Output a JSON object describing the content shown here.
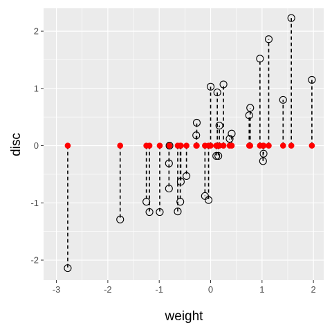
{
  "chart_data": {
    "type": "scatter",
    "xlabel": "weight",
    "ylabel": "disc",
    "xlim": [
      -3.25,
      2.2
    ],
    "ylim": [
      -2.35,
      2.4
    ],
    "x_ticks": [
      -3,
      -2,
      -1,
      0,
      1,
      2
    ],
    "x_tick_labels": [
      "-3",
      "-2",
      "-1",
      "0",
      "1",
      "2"
    ],
    "y_ticks": [
      -2,
      -1,
      0,
      1,
      2
    ],
    "y_tick_labels": [
      "-2",
      "-1",
      "0",
      "1",
      "2"
    ],
    "grid": true,
    "colors": {
      "panel": "#ebebeb",
      "grid_major": "#ffffff",
      "baseline_points": "#ff0000",
      "observed_points": "#000000",
      "segments": "#000000"
    },
    "points": [
      {
        "x": -2.78,
        "y": -2.14
      },
      {
        "x": -1.76,
        "y": -1.29
      },
      {
        "x": -1.25,
        "y": -0.98
      },
      {
        "x": -1.19,
        "y": -1.16
      },
      {
        "x": -0.99,
        "y": -1.16
      },
      {
        "x": -0.81,
        "y": -0.31
      },
      {
        "x": -0.81,
        "y": -0.75
      },
      {
        "x": -0.8,
        "y": 0.0
      },
      {
        "x": -0.64,
        "y": -1.15
      },
      {
        "x": -0.59,
        "y": -0.98
      },
      {
        "x": -0.58,
        "y": -0.63
      },
      {
        "x": -0.47,
        "y": -0.53
      },
      {
        "x": -0.28,
        "y": 0.18
      },
      {
        "x": -0.27,
        "y": 0.4
      },
      {
        "x": -0.11,
        "y": -0.88
      },
      {
        "x": -0.04,
        "y": -0.95
      },
      {
        "x": 0.0,
        "y": 1.03
      },
      {
        "x": 0.11,
        "y": -0.18
      },
      {
        "x": 0.13,
        "y": 0.93
      },
      {
        "x": 0.15,
        "y": -0.18
      },
      {
        "x": 0.17,
        "y": 0.35
      },
      {
        "x": 0.25,
        "y": 1.07
      },
      {
        "x": 0.37,
        "y": 0.12
      },
      {
        "x": 0.41,
        "y": 0.21
      },
      {
        "x": 0.77,
        "y": 0.66
      },
      {
        "x": 0.75,
        "y": 0.53
      },
      {
        "x": 0.96,
        "y": 1.52
      },
      {
        "x": 1.02,
        "y": -0.27
      },
      {
        "x": 1.03,
        "y": -0.14
      },
      {
        "x": 1.13,
        "y": 1.86
      },
      {
        "x": 1.41,
        "y": 0.8
      },
      {
        "x": 1.57,
        "y": 2.23
      },
      {
        "x": 1.97,
        "y": 1.15
      }
    ]
  }
}
